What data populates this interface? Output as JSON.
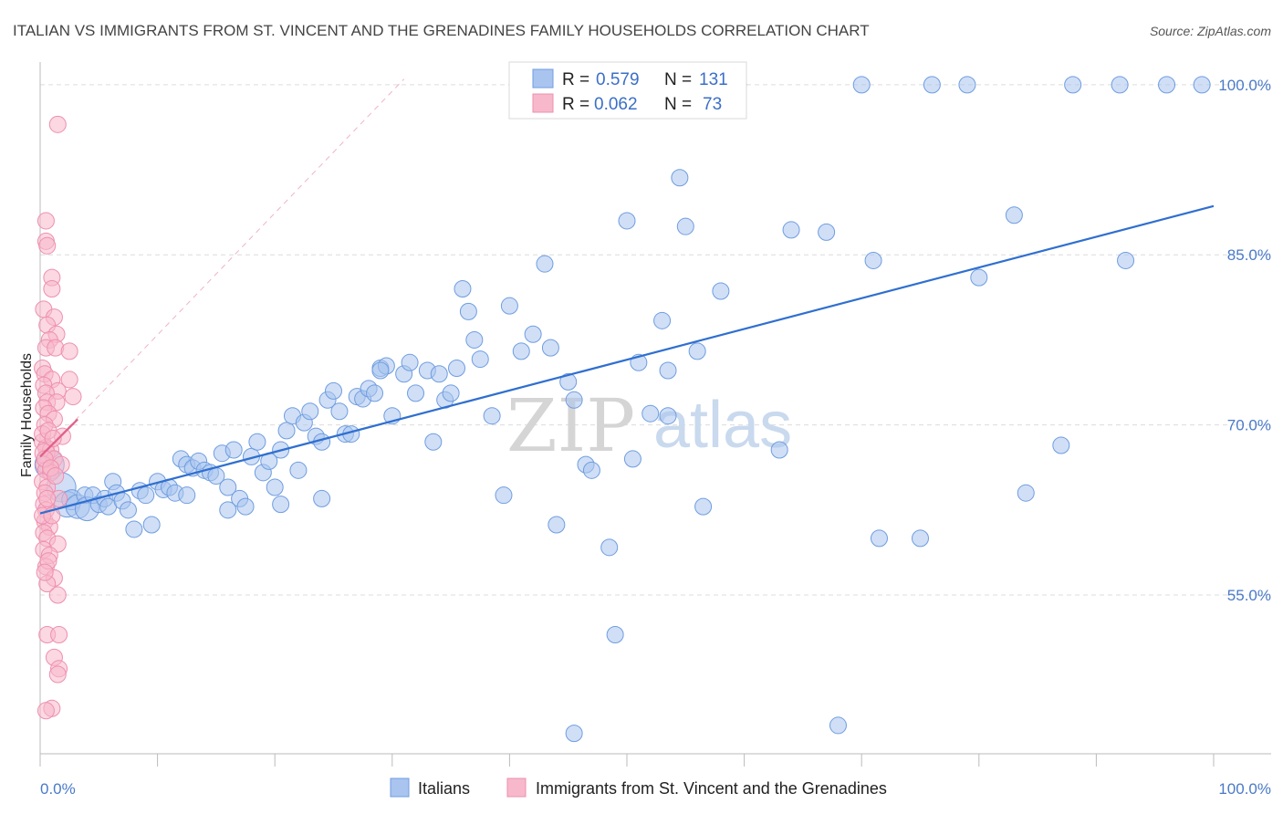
{
  "title": "ITALIAN VS IMMIGRANTS FROM ST. VINCENT AND THE GRENADINES FAMILY HOUSEHOLDS CORRELATION CHART",
  "source": "Source: ZipAtlas.com",
  "watermark": {
    "part1": "ZIP",
    "part2": "atlas"
  },
  "legend_top": [
    {
      "r_label": "R =",
      "r_value": "0.579",
      "n_label": "N =",
      "n_value": "131",
      "color": "#a9c4ef"
    },
    {
      "r_label": "R =",
      "r_value": "0.062",
      "n_label": "N =",
      "n_value": "73",
      "color": "#f7b8cb"
    }
  ],
  "legend_bottom": [
    {
      "label": "Italians",
      "color": "#a9c4ef"
    },
    {
      "label": "Immigrants from St. Vincent and the Grenadines",
      "color": "#f7b8cb"
    }
  ],
  "chart_data": {
    "type": "scatter",
    "title": "ITALIAN VS IMMIGRANTS FROM ST. VINCENT AND THE GRENADINES FAMILY HOUSEHOLDS CORRELATION CHART",
    "xlabel": "",
    "ylabel": "Family Households",
    "xlim": [
      0,
      100
    ],
    "ylim": [
      41,
      102
    ],
    "x_tick_labels": [
      "0.0%",
      "100.0%"
    ],
    "y_ticks": [
      55,
      70,
      85,
      100
    ],
    "y_tick_labels": [
      "55.0%",
      "70.0%",
      "85.0%",
      "100.0%"
    ],
    "grid": true,
    "series": [
      {
        "name": "Italians",
        "color": "#6f9de0",
        "fill": "#a9c4ef",
        "r": 0.579,
        "n": 131,
        "trend": {
          "x": [
            0,
            100
          ],
          "y": [
            62.2,
            89.3
          ]
        },
        "points": [
          [
            0.8,
            66.5,
            16
          ],
          [
            1.8,
            64.5,
            16
          ],
          [
            2.3,
            63.0,
            14
          ],
          [
            2.7,
            63.4,
            11
          ],
          [
            3.2,
            62.8,
            13
          ],
          [
            3.8,
            63.8,
            9
          ],
          [
            4.0,
            62.6,
            13
          ],
          [
            4.5,
            63.8,
            9
          ],
          [
            5.0,
            63.0,
            9
          ],
          [
            5.5,
            63.5,
            9
          ],
          [
            5.8,
            62.8,
            9
          ],
          [
            6.2,
            65.0,
            9
          ],
          [
            6.5,
            64.0,
            9
          ],
          [
            7.0,
            63.3,
            9
          ],
          [
            7.5,
            62.5,
            9
          ],
          [
            8.0,
            60.8,
            9
          ],
          [
            8.5,
            64.2,
            9
          ],
          [
            9.0,
            63.8,
            9
          ],
          [
            9.5,
            61.2,
            9
          ],
          [
            10.0,
            65.0,
            9
          ],
          [
            10.5,
            64.3,
            9
          ],
          [
            11.0,
            64.5,
            9
          ],
          [
            11.5,
            64.0,
            9
          ],
          [
            12.0,
            67.0,
            9
          ],
          [
            12.5,
            66.5,
            9
          ],
          [
            13.0,
            66.2,
            9
          ],
          [
            13.5,
            66.8,
            9
          ],
          [
            14.0,
            66.0,
            9
          ],
          [
            14.5,
            65.8,
            9
          ],
          [
            15.0,
            65.5,
            9
          ],
          [
            15.5,
            67.5,
            9
          ],
          [
            16.0,
            64.5,
            9
          ],
          [
            16.5,
            67.8,
            9
          ],
          [
            17.0,
            63.5,
            9
          ],
          [
            17.5,
            62.8,
            9
          ],
          [
            18.0,
            67.2,
            9
          ],
          [
            18.5,
            68.5,
            9
          ],
          [
            19.0,
            65.8,
            9
          ],
          [
            19.5,
            66.8,
            9
          ],
          [
            20.0,
            64.5,
            9
          ],
          [
            20.5,
            67.8,
            9
          ],
          [
            21.0,
            69.5,
            9
          ],
          [
            21.5,
            70.8,
            9
          ],
          [
            22.0,
            66.0,
            9
          ],
          [
            22.5,
            70.2,
            9
          ],
          [
            23.0,
            71.2,
            9
          ],
          [
            23.5,
            69.0,
            9
          ],
          [
            24.0,
            68.5,
            9
          ],
          [
            24.5,
            72.2,
            9
          ],
          [
            25.0,
            73.0,
            9
          ],
          [
            25.5,
            71.2,
            9
          ],
          [
            26.0,
            69.2,
            9
          ],
          [
            26.5,
            69.2,
            9
          ],
          [
            27.0,
            72.5,
            9
          ],
          [
            27.5,
            72.3,
            9
          ],
          [
            28.0,
            73.2,
            9
          ],
          [
            28.5,
            72.8,
            9
          ],
          [
            29.0,
            75.0,
            9
          ],
          [
            29.5,
            75.2,
            9
          ],
          [
            30.0,
            70.8,
            9
          ],
          [
            31.0,
            74.5,
            9
          ],
          [
            31.5,
            75.5,
            9
          ],
          [
            32.0,
            72.8,
            9
          ],
          [
            33.0,
            74.8,
            9
          ],
          [
            33.5,
            68.5,
            9
          ],
          [
            34.0,
            74.5,
            9
          ],
          [
            34.5,
            72.2,
            9
          ],
          [
            35.0,
            72.8,
            9
          ],
          [
            35.5,
            75.0,
            9
          ],
          [
            36.0,
            82.0,
            9
          ],
          [
            36.5,
            80.0,
            9
          ],
          [
            37.0,
            77.5,
            9
          ],
          [
            37.5,
            75.8,
            9
          ],
          [
            38.5,
            70.8,
            9
          ],
          [
            39.5,
            63.8,
            9
          ],
          [
            40.0,
            80.5,
            9
          ],
          [
            41.0,
            76.5,
            9
          ],
          [
            42.0,
            78.0,
            9
          ],
          [
            43.0,
            84.2,
            9
          ],
          [
            43.5,
            76.8,
            9
          ],
          [
            44.0,
            61.2,
            9
          ],
          [
            45.0,
            73.8,
            9
          ],
          [
            45.5,
            72.2,
            9
          ],
          [
            46.5,
            66.5,
            9
          ],
          [
            47.0,
            66.0,
            9
          ],
          [
            48.5,
            59.2,
            9
          ],
          [
            49.0,
            51.5,
            9
          ],
          [
            50.0,
            88.0,
            9
          ],
          [
            50.5,
            67.0,
            9
          ],
          [
            51.0,
            75.5,
            9
          ],
          [
            52.0,
            71.0,
            9
          ],
          [
            53.0,
            79.2,
            9
          ],
          [
            53.5,
            70.8,
            9
          ],
          [
            53.5,
            74.8,
            9
          ],
          [
            54.5,
            91.8,
            9
          ],
          [
            55.0,
            87.5,
            9
          ],
          [
            56.0,
            76.5,
            9
          ],
          [
            56.5,
            62.8,
            9
          ],
          [
            58.0,
            81.8,
            9
          ],
          [
            59.0,
            100.0,
            9
          ],
          [
            59.5,
            100.0,
            9
          ],
          [
            63.0,
            67.8,
            9
          ],
          [
            64.0,
            87.2,
            9
          ],
          [
            67.0,
            87.0,
            9
          ],
          [
            68.0,
            43.5,
            9
          ],
          [
            70.0,
            100.0,
            9
          ],
          [
            71.0,
            84.5,
            9
          ],
          [
            71.5,
            60.0,
            9
          ],
          [
            75.0,
            60.0,
            9
          ],
          [
            76.0,
            100.0,
            9
          ],
          [
            79.0,
            100.0,
            9
          ],
          [
            80.0,
            83.0,
            9
          ],
          [
            83.0,
            88.5,
            9
          ],
          [
            84.0,
            64.0,
            9
          ],
          [
            87.0,
            68.2,
            9
          ],
          [
            88.0,
            100.0,
            9
          ],
          [
            92.0,
            100.0,
            9
          ],
          [
            92.5,
            84.5,
            9
          ],
          [
            96.0,
            100.0,
            9
          ],
          [
            99.0,
            100.0,
            9
          ],
          [
            45.5,
            42.8,
            9
          ],
          [
            29.0,
            74.8,
            9
          ],
          [
            24.0,
            63.5,
            9
          ],
          [
            16.0,
            62.5,
            9
          ],
          [
            20.5,
            63.0,
            9
          ],
          [
            12.5,
            63.8,
            9
          ]
        ]
      },
      {
        "name": "Immigrants from St. Vincent and the Grenadines",
        "color": "#ee8fae",
        "fill": "#f7b8cb",
        "r": 0.062,
        "n": 73,
        "trend": {
          "x": [
            0,
            3.2
          ],
          "y": [
            67.2,
            70.5
          ]
        },
        "trend_extended": {
          "x": [
            0,
            31
          ],
          "y": [
            67.2,
            100.5
          ]
        },
        "points": [
          [
            1.5,
            96.5,
            9
          ],
          [
            0.5,
            88.0,
            9
          ],
          [
            0.5,
            86.2,
            9
          ],
          [
            0.6,
            85.8,
            9
          ],
          [
            1.0,
            83.0,
            9
          ],
          [
            1.0,
            82.0,
            9
          ],
          [
            0.3,
            80.2,
            9
          ],
          [
            1.2,
            79.5,
            9
          ],
          [
            0.6,
            78.8,
            9
          ],
          [
            1.4,
            78.0,
            9
          ],
          [
            0.8,
            77.5,
            9
          ],
          [
            0.5,
            76.8,
            9
          ],
          [
            1.3,
            76.8,
            9
          ],
          [
            2.5,
            76.5,
            9
          ],
          [
            0.2,
            75.0,
            9
          ],
          [
            0.4,
            74.5,
            9
          ],
          [
            1.0,
            74.0,
            9
          ],
          [
            2.5,
            74.0,
            9
          ],
          [
            0.3,
            73.5,
            9
          ],
          [
            1.5,
            73.0,
            9
          ],
          [
            0.5,
            72.8,
            9
          ],
          [
            2.8,
            72.5,
            9
          ],
          [
            0.6,
            72.0,
            9
          ],
          [
            1.4,
            72.0,
            9
          ],
          [
            0.3,
            71.5,
            9
          ],
          [
            0.7,
            71.0,
            9
          ],
          [
            1.2,
            70.5,
            9
          ],
          [
            0.4,
            70.0,
            9
          ],
          [
            1.9,
            69.0,
            9
          ],
          [
            0.2,
            68.5,
            9
          ],
          [
            0.5,
            68.0,
            9
          ],
          [
            0.9,
            67.8,
            9
          ],
          [
            0.4,
            67.5,
            11
          ],
          [
            1.2,
            67.0,
            9
          ],
          [
            0.3,
            66.5,
            9
          ],
          [
            1.8,
            66.5,
            9
          ],
          [
            0.5,
            66.0,
            9
          ],
          [
            0.9,
            65.8,
            9
          ],
          [
            0.2,
            65.0,
            9
          ],
          [
            0.6,
            64.5,
            9
          ],
          [
            0.4,
            64.0,
            9
          ],
          [
            1.6,
            63.5,
            9
          ],
          [
            0.3,
            63.0,
            9
          ],
          [
            0.5,
            62.5,
            9
          ],
          [
            0.4,
            61.5,
            9
          ],
          [
            0.8,
            61.0,
            9
          ],
          [
            0.3,
            60.5,
            9
          ],
          [
            0.6,
            60.0,
            9
          ],
          [
            1.5,
            59.5,
            9
          ],
          [
            0.3,
            59.0,
            9
          ],
          [
            0.8,
            58.5,
            9
          ],
          [
            0.5,
            57.5,
            9
          ],
          [
            1.2,
            56.5,
            9
          ],
          [
            0.6,
            56.0,
            9
          ],
          [
            1.5,
            55.0,
            9
          ],
          [
            0.6,
            51.5,
            9
          ],
          [
            1.6,
            51.5,
            9
          ],
          [
            1.2,
            49.5,
            9
          ],
          [
            1.6,
            48.5,
            9
          ],
          [
            1.5,
            48.0,
            9
          ],
          [
            1.0,
            45.0,
            9
          ],
          [
            0.5,
            44.8,
            9
          ],
          [
            0.2,
            69.2,
            9
          ],
          [
            0.7,
            69.5,
            9
          ],
          [
            1.1,
            68.8,
            9
          ],
          [
            0.4,
            67.0,
            9
          ],
          [
            0.9,
            66.2,
            9
          ],
          [
            1.3,
            65.5,
            9
          ],
          [
            0.6,
            63.5,
            9
          ],
          [
            0.2,
            62.0,
            9
          ],
          [
            1.0,
            62.0,
            9
          ],
          [
            0.7,
            58.0,
            9
          ],
          [
            0.4,
            57.0,
            9
          ]
        ]
      }
    ]
  }
}
